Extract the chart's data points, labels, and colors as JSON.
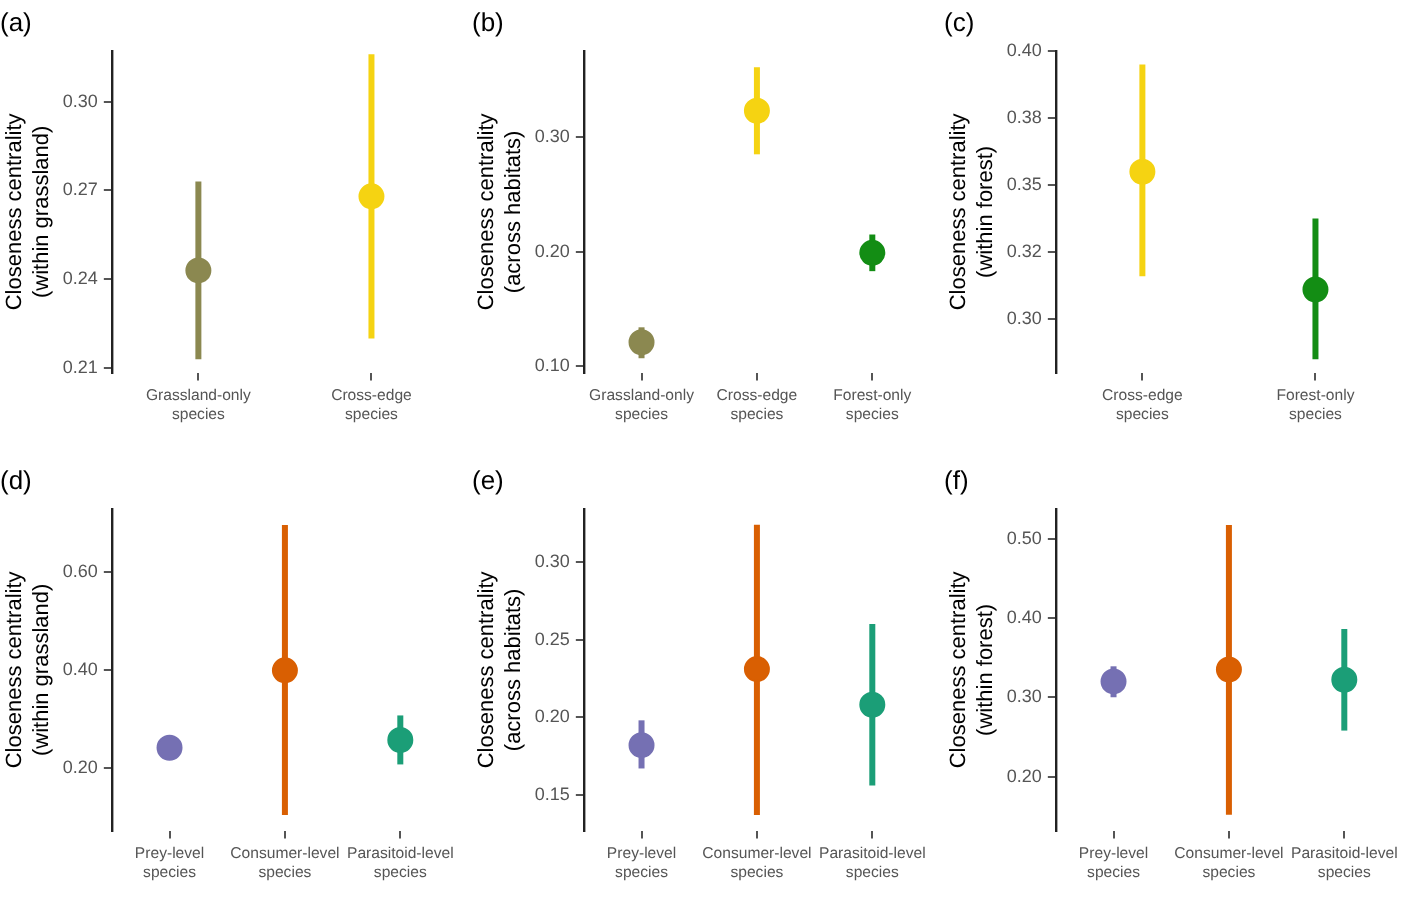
{
  "chart_data": [
    {
      "type": "scatter",
      "title": "(a)",
      "ylabel": "Closeness centrality\n(within grassland)",
      "categories": [
        "Grassland-only species",
        "Cross-edge species"
      ],
      "values": [
        0.243,
        0.268
      ],
      "colors": [
        "#8b8850",
        "#f5d312"
      ],
      "errors": [
        [
          0.213,
          0.273
        ],
        [
          0.22,
          0.316
        ]
      ],
      "ylim": [
        0.2085,
        0.317
      ],
      "yticks": [
        0.21,
        0.24,
        0.27,
        {
          "value": 0.3,
          "label": "0.30"
        }
      ],
      "grid": false,
      "marker": "circle"
    },
    {
      "type": "scatter",
      "title": "(b)",
      "ylabel": "Closeness centrality\n(across habitats)",
      "categories": [
        "Grassland-only species",
        "Cross-edge species",
        "Forest-only species"
      ],
      "values": [
        0.121,
        0.323,
        0.199
      ],
      "colors": [
        "#8b8850",
        "#f5d312",
        "#138d14"
      ],
      "errors": [
        [
          0.107,
          0.134
        ],
        [
          0.285,
          0.361
        ],
        [
          0.183,
          0.215
        ]
      ],
      "ylim": [
        0.0945,
        0.375
      ],
      "yticks": [
        {
          "value": 0.1,
          "label": "0.10"
        },
        {
          "value": 0.2,
          "label": "0.20"
        },
        {
          "value": 0.3,
          "label": "0.30"
        }
      ],
      "grid": false,
      "marker": "circle"
    },
    {
      "type": "scatter",
      "title": "(c)",
      "ylabel": "Closeness centrality\n(within forest)",
      "categories": [
        "Cross-edge species",
        "Forest-only species"
      ],
      "values": [
        0.355,
        0.311
      ],
      "colors": [
        "#f5d312",
        "#138d14"
      ],
      "errors": [
        [
          0.316,
          0.395
        ],
        [
          0.285,
          0.3375
        ]
      ],
      "ylim": [
        0.28,
        0.4
      ],
      "yticks": [
        {
          "value": 0.3,
          "label": "0.30"
        },
        {
          "value": 0.325,
          "label": "0.32"
        },
        {
          "value": 0.35,
          "label": "0.35"
        },
        {
          "value": 0.375,
          "label": "0.38"
        },
        {
          "value": 0.4,
          "label": "0.40"
        }
      ],
      "grid": false,
      "marker": "circle"
    },
    {
      "type": "scatter",
      "title": "(d)",
      "ylabel": "Closeness centrality\n(within grassland)",
      "categories": [
        "Prey-level species",
        "Consumer-level species",
        "Parasitoid-level species"
      ],
      "values": [
        0.242,
        0.4,
        0.258
      ],
      "colors": [
        "#7570b3",
        "#d95f02",
        "#1b9e77"
      ],
      "errors": [
        [
          0.22,
          0.263
        ],
        [
          0.105,
          0.697
        ],
        [
          0.208,
          0.308
        ]
      ],
      "ylim": [
        0.073,
        0.729
      ],
      "yticks": [
        {
          "value": 0.2,
          "label": "0.20"
        },
        {
          "value": 0.4,
          "label": "0.40"
        },
        {
          "value": 0.6,
          "label": "0.60"
        }
      ],
      "grid": false,
      "marker": "circle"
    },
    {
      "type": "scatter",
      "title": "(e)",
      "ylabel": "Closeness centrality\n(across habitats)",
      "categories": [
        "Prey-level species",
        "Consumer-level species",
        "Parasitoid-level species"
      ],
      "values": [
        0.182,
        0.231,
        0.208
      ],
      "colors": [
        "#7570b3",
        "#d95f02",
        "#1b9e77"
      ],
      "errors": [
        [
          0.167,
          0.198
        ],
        [
          0.137,
          0.324
        ],
        [
          0.156,
          0.26
        ]
      ],
      "ylim": [
        0.127,
        0.334
      ],
      "yticks": [
        0.15,
        {
          "value": 0.2,
          "label": "0.20"
        },
        0.25,
        {
          "value": 0.3,
          "label": "0.30"
        }
      ],
      "grid": false,
      "marker": "circle"
    },
    {
      "type": "scatter",
      "title": "(f)",
      "ylabel": "Closeness centrality\n(within forest)",
      "categories": [
        "Prey-level species",
        "Consumer-level species",
        "Parasitoid-level species"
      ],
      "values": [
        0.32,
        0.335,
        0.322
      ],
      "colors": [
        "#7570b3",
        "#d95f02",
        "#1b9e77"
      ],
      "errors": [
        [
          0.3,
          0.339
        ],
        [
          0.152,
          0.517
        ],
        [
          0.258,
          0.386
        ]
      ],
      "ylim": [
        0.132,
        0.537
      ],
      "yticks": [
        {
          "value": 0.2,
          "label": "0.20"
        },
        {
          "value": 0.3,
          "label": "0.30"
        },
        {
          "value": 0.4,
          "label": "0.40"
        },
        {
          "value": 0.5,
          "label": "0.50"
        }
      ],
      "grid": false,
      "marker": "circle"
    }
  ]
}
